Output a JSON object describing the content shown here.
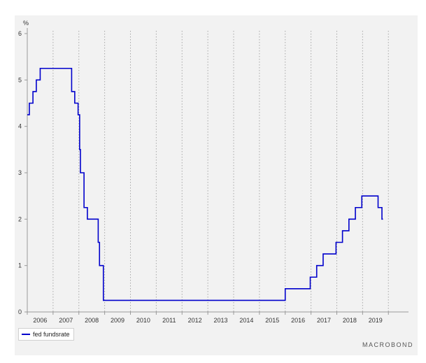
{
  "chart_data": {
    "type": "line",
    "unit_label": "%",
    "y_ticks": [
      "0",
      "1",
      "2",
      "3",
      "4",
      "5",
      "6"
    ],
    "ylim": [
      0,
      6
    ],
    "xlim": [
      2005.0,
      2019.78
    ],
    "x_year_starts": [
      2005,
      2006,
      2007,
      2008,
      2009,
      2010,
      2011,
      2012,
      2013,
      2014,
      2015,
      2016,
      2017,
      2018,
      2019
    ],
    "x_tick_labels": [
      {
        "label": "2006",
        "x": 2005.5
      },
      {
        "label": "2007",
        "x": 2006.5
      },
      {
        "label": "2008",
        "x": 2007.5
      },
      {
        "label": "2009",
        "x": 2008.5
      },
      {
        "label": "2010",
        "x": 2009.5
      },
      {
        "label": "2011",
        "x": 2010.5
      },
      {
        "label": "2012",
        "x": 2011.5
      },
      {
        "label": "2013",
        "x": 2012.5
      },
      {
        "label": "2014",
        "x": 2013.5
      },
      {
        "label": "2015",
        "x": 2014.5
      },
      {
        "label": "2016",
        "x": 2015.5
      },
      {
        "label": "2017",
        "x": 2016.5
      },
      {
        "label": "2018",
        "x": 2017.5
      },
      {
        "label": "2019",
        "x": 2018.5
      }
    ],
    "grid": "vertical dotted",
    "legend_position": "bottom-left",
    "series": [
      {
        "name": "fed fundsrate",
        "color": "#0000cc",
        "step": true,
        "points": [
          [
            2005.0,
            4.25
          ],
          [
            2005.08,
            4.5
          ],
          [
            2005.22,
            4.75
          ],
          [
            2005.35,
            5.0
          ],
          [
            2005.5,
            5.25
          ],
          [
            2006.72,
            4.75
          ],
          [
            2006.84,
            4.5
          ],
          [
            2006.97,
            4.25
          ],
          [
            2007.03,
            3.5
          ],
          [
            2007.06,
            3.0
          ],
          [
            2007.2,
            2.25
          ],
          [
            2007.33,
            2.0
          ],
          [
            2007.75,
            1.5
          ],
          [
            2007.8,
            1.0
          ],
          [
            2007.95,
            0.25
          ],
          [
            2015.0,
            0.5
          ],
          [
            2015.97,
            0.75
          ],
          [
            2016.22,
            1.0
          ],
          [
            2016.47,
            1.25
          ],
          [
            2016.97,
            1.5
          ],
          [
            2017.22,
            1.75
          ],
          [
            2017.47,
            2.0
          ],
          [
            2017.72,
            2.25
          ],
          [
            2017.97,
            2.5
          ],
          [
            2018.6,
            2.25
          ],
          [
            2018.75,
            2.0
          ],
          [
            2018.79,
            2.0
          ]
        ]
      }
    ]
  },
  "brand": "MACROBOND"
}
